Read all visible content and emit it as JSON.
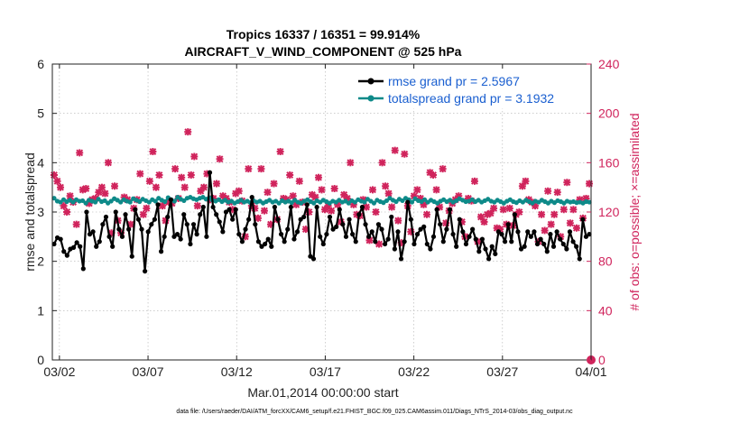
{
  "chart_data": {
    "type": "line",
    "title": "Tropics 16337 / 16351 = 99.914%",
    "subtitle": "AIRCRAFT_V_WIND_COMPONENT @ 525 hPa",
    "xlabel": "Mar.01,2014 00:00:00 start",
    "ylabel": "rmse and totalspread",
    "ylabel_right": "# of obs: o=possible; ×=assimilated",
    "footnote": "data file: /Users/raeder/DAI/ATM_forcXX/CAM6_setup/f.e21.FHIST_BGC.f09_025.CAM6assim.011/Diags_NTrS_2014-03/obs_diag_output.nc",
    "x_range_days": [
      0.6,
      31.0
    ],
    "x_ticks": [
      {
        "label": "03/02",
        "day": 1
      },
      {
        "label": "03/07",
        "day": 6
      },
      {
        "label": "03/12",
        "day": 11
      },
      {
        "label": "03/17",
        "day": 16
      },
      {
        "label": "03/22",
        "day": 21
      },
      {
        "label": "03/27",
        "day": 26
      },
      {
        "label": "04/01",
        "day": 31
      }
    ],
    "ylim": [
      0,
      6
    ],
    "y_ticks": [
      "0",
      "1",
      "2",
      "3",
      "4",
      "5",
      "6"
    ],
    "ylim_right": [
      0,
      240
    ],
    "y_ticks_right": [
      "0",
      "40",
      "80",
      "120",
      "160",
      "200",
      "240"
    ],
    "legend_position": "top-right",
    "series": [
      {
        "name": "rmse grand pr = 2.5967",
        "color": "#000000",
        "marker": "dot",
        "axis": "left",
        "values": [
          2.35,
          2.48,
          2.45,
          2.2,
          2.12,
          2.25,
          2.28,
          2.38,
          2.3,
          1.85,
          3.0,
          2.55,
          2.6,
          2.3,
          2.4,
          2.75,
          2.9,
          2.5,
          2.3,
          3.0,
          2.65,
          2.5,
          2.95,
          2.65,
          2.1,
          3.05,
          2.85,
          2.65,
          1.8,
          2.6,
          2.75,
          2.85,
          3.15,
          2.2,
          2.5,
          2.9,
          3.25,
          2.5,
          2.55,
          2.45,
          2.95,
          2.75,
          2.35,
          2.75,
          2.55,
          2.95,
          3.1,
          2.5,
          3.8,
          3.1,
          2.95,
          2.8,
          2.6,
          3.0,
          3.05,
          2.85,
          3.05,
          2.55,
          2.4,
          2.65,
          2.85,
          3.3,
          2.75,
          2.4,
          2.3,
          2.35,
          2.45,
          2.3,
          3.1,
          2.85,
          2.55,
          2.4,
          2.65,
          3.1,
          2.45,
          2.6,
          2.85,
          2.9,
          3.15,
          2.1,
          2.05,
          3.1,
          2.5,
          2.35,
          2.55,
          2.9,
          2.65,
          2.7,
          3.05,
          2.75,
          2.5,
          2.85,
          2.55,
          2.4,
          2.95,
          3.1,
          2.75,
          2.5,
          2.6,
          2.4,
          2.75,
          2.65,
          2.35,
          2.45,
          2.9,
          2.25,
          2.6,
          2.05,
          2.4,
          3.2,
          2.85,
          2.35,
          2.55,
          2.65,
          2.7,
          2.35,
          2.25,
          2.5,
          3.05,
          2.75,
          2.4,
          2.65,
          3.05,
          2.55,
          2.3,
          2.85,
          2.6,
          2.35,
          2.5,
          2.65,
          2.45,
          2.2,
          2.45,
          2.25,
          2.05,
          2.3,
          2.15,
          2.6,
          2.55,
          2.4,
          2.75,
          2.4,
          2.95,
          2.6,
          2.25,
          2.3,
          2.6,
          2.5,
          2.6,
          2.35,
          2.45,
          2.35,
          2.2,
          2.55,
          2.3,
          2.6,
          2.45,
          2.35,
          2.25,
          2.6,
          2.4,
          2.3,
          2.05,
          2.85,
          2.5,
          2.55
        ]
      },
      {
        "name": "totalspread grand pr = 3.1932",
        "color": "#0e8a89",
        "marker": "dot",
        "axis": "left",
        "values": [
          3.28,
          3.22,
          3.2,
          3.25,
          3.21,
          3.24,
          3.2,
          3.25,
          3.22,
          3.23,
          3.18,
          3.24,
          3.22,
          3.2,
          3.26,
          3.21,
          3.23,
          3.18,
          3.22,
          3.27,
          3.24,
          3.2,
          3.25,
          3.22,
          3.2,
          3.27,
          3.24,
          3.21,
          3.26,
          3.23,
          3.2,
          3.25,
          3.22,
          3.28,
          3.24,
          3.21,
          3.29,
          3.25,
          3.22,
          3.3,
          3.26,
          3.23,
          3.28,
          3.3,
          3.27,
          3.25,
          3.28,
          3.3,
          3.26,
          3.29,
          3.24,
          3.22,
          3.25,
          3.21,
          3.24,
          3.2,
          3.22,
          3.18,
          3.21,
          3.24,
          3.2,
          3.22,
          3.19,
          3.23,
          3.2,
          3.22,
          3.18,
          3.21,
          3.24,
          3.2,
          3.22,
          3.18,
          3.23,
          3.2,
          3.22,
          3.19,
          3.24,
          3.2,
          3.18,
          3.22,
          3.25,
          3.21,
          3.18,
          3.23,
          3.2,
          3.24,
          3.21,
          3.18,
          3.22,
          3.2,
          3.24,
          3.2,
          3.22,
          3.18,
          3.23,
          3.2,
          3.25,
          3.22,
          3.2,
          3.26,
          3.22,
          3.18,
          3.24,
          3.21,
          3.19,
          3.23,
          3.28,
          3.24,
          3.21,
          3.26,
          3.23,
          3.28,
          3.25,
          3.2,
          3.27,
          3.23,
          3.21,
          3.25,
          3.2,
          3.24,
          3.21,
          3.18,
          3.22,
          3.25,
          3.21,
          3.24,
          3.2,
          3.23,
          3.27,
          3.24,
          3.21,
          3.22,
          3.25,
          3.21,
          3.24,
          3.2,
          3.23,
          3.26,
          3.22,
          3.2,
          3.24,
          3.21,
          3.18,
          3.22,
          3.25,
          3.21,
          3.19,
          3.23,
          3.2,
          3.24,
          3.21,
          3.18,
          3.22,
          3.2,
          3.24,
          3.21,
          3.18,
          3.22,
          3.19,
          3.23,
          3.21,
          3.18,
          3.22,
          3.2,
          3.21,
          3.19,
          3.2,
          3.18,
          3.21,
          3.2
        ]
      },
      {
        "name": "# of obs possible",
        "color": "#d0245c",
        "marker": "o",
        "axis": "right",
        "values": [
          0
        ]
      },
      {
        "name": "# of obs assimilated",
        "color": "#d0245c",
        "marker": "x",
        "axis": "right",
        "values": [
          150,
          145,
          140,
          125,
          120,
          133,
          128,
          110,
          168,
          138,
          139,
          127,
          130,
          131,
          136,
          140,
          135,
          160,
          103,
          141,
          113,
          103,
          132,
          130,
          110,
          123,
          130,
          151,
          118,
          123,
          145,
          169,
          140,
          150,
          125,
          113,
          128,
          127,
          155,
          131,
          148,
          140,
          185,
          150,
          165,
          125,
          137,
          140,
          151,
          130,
          131,
          143,
          163,
          133,
          131,
          128,
          122,
          135,
          137,
          129,
          100,
          155,
          125,
          123,
          115,
          155,
          121,
          136,
          110,
          143,
          114,
          169,
          131,
          130,
          150,
          133,
          126,
          145,
          128,
          106,
          120,
          134,
          132,
          148,
          138,
          122,
          125,
          121,
          139,
          126,
          112,
          134,
          131,
          160,
          126,
          118,
          117,
          130,
          124,
          97,
          138,
          120,
          94,
          160,
          141,
          135,
          124,
          170,
          113,
          95,
          167,
          125,
          104,
          133,
          138,
          131,
          126,
          118,
          152,
          150,
          138,
          124,
          155,
          111,
          121,
          127,
          130,
          133,
          112,
          100,
          131,
          129,
          145,
          96,
          116,
          112,
          118,
          119,
          123,
          107,
          106,
          122,
          110,
          123,
          109,
          118,
          120,
          141,
          145,
          130,
          128,
          125,
          96,
          118,
          105,
          137,
          110,
          118,
          136,
          100,
          122,
          144,
          111,
          122,
          107,
          130,
          115,
          131,
          143
        ]
      }
    ]
  }
}
